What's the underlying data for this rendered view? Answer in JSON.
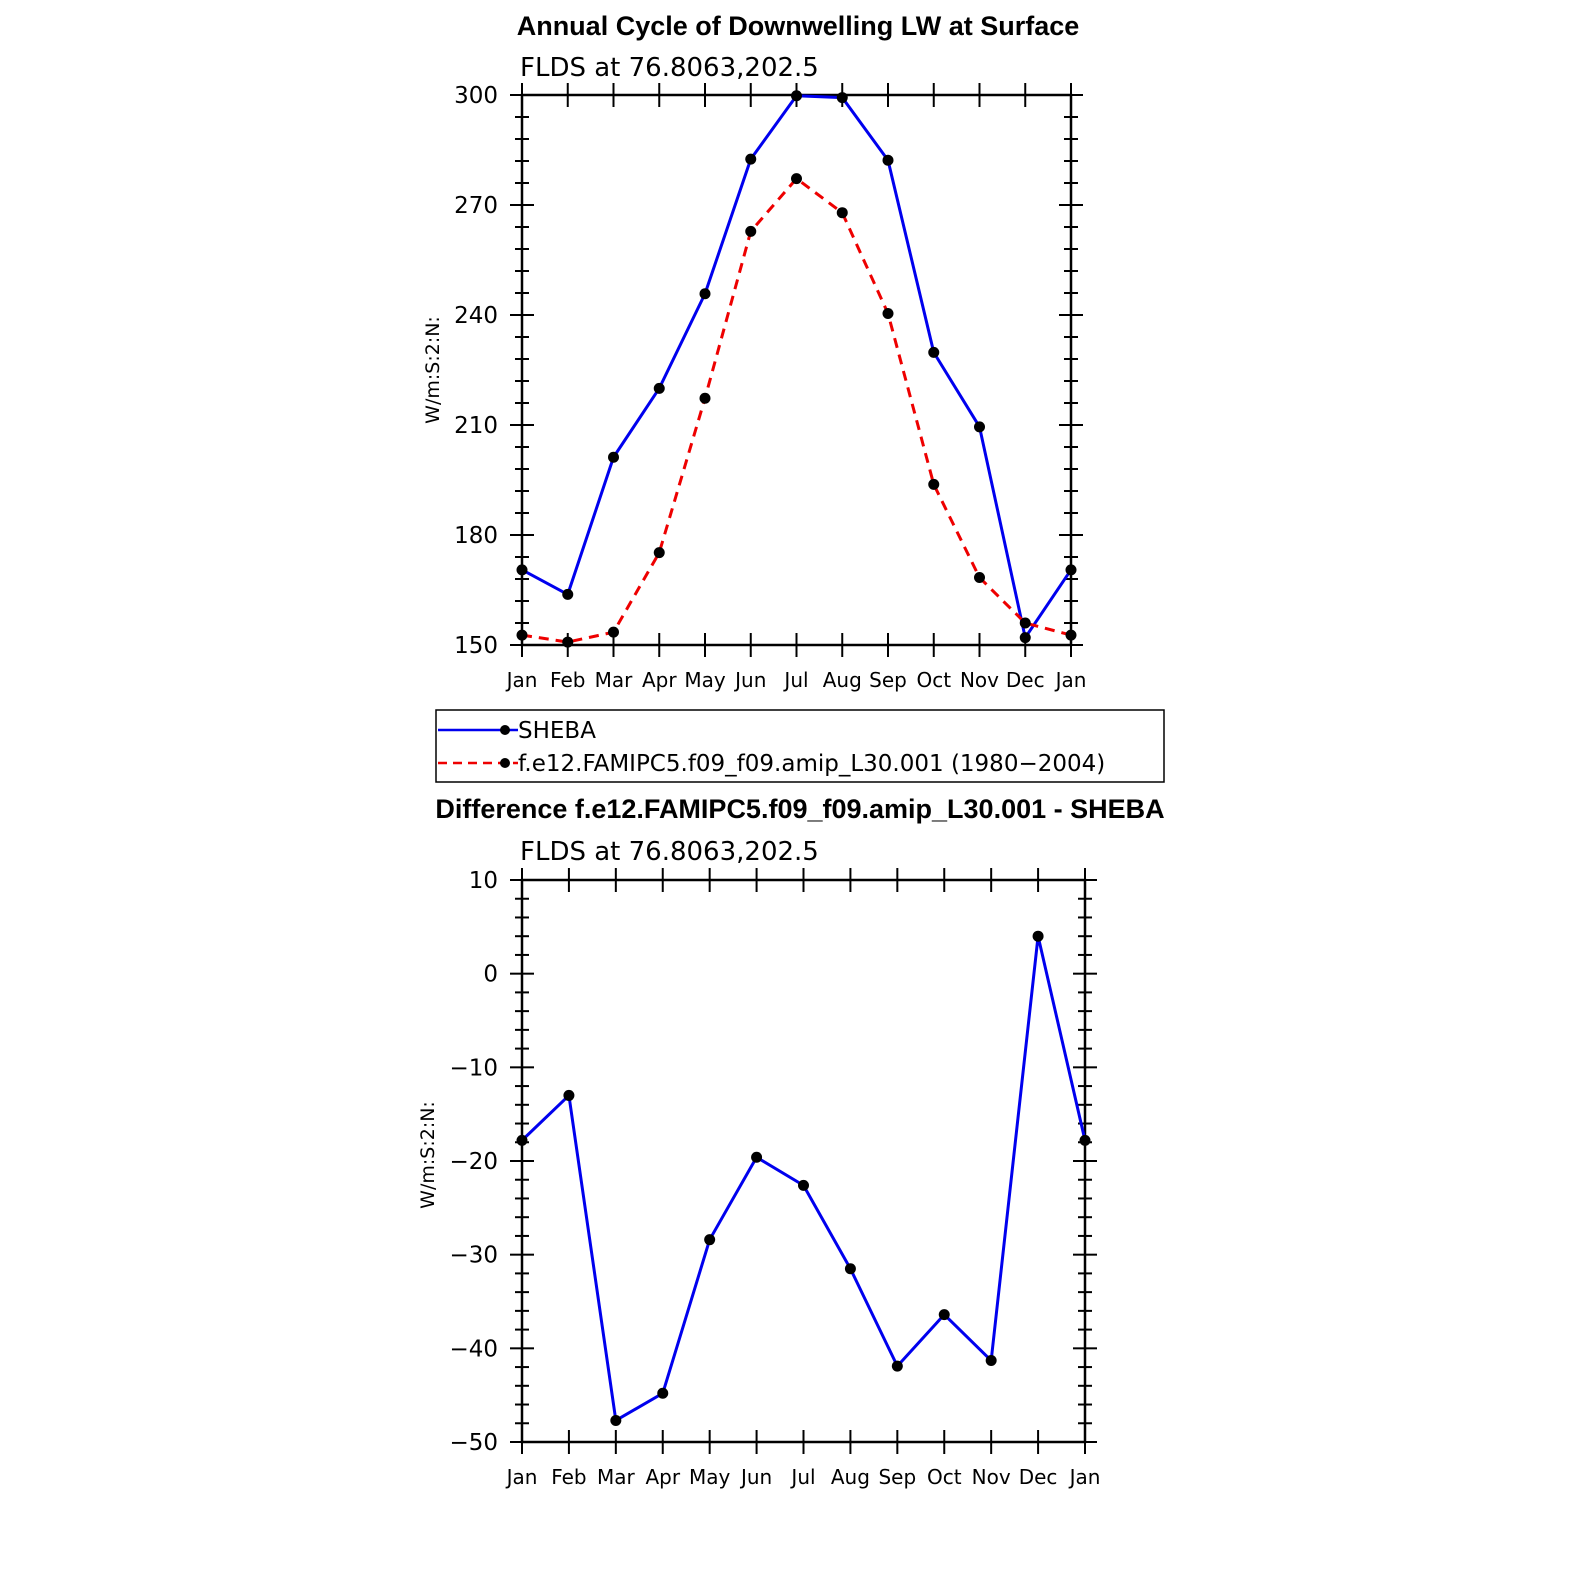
{
  "chart_data": [
    {
      "type": "line",
      "title": "Annual Cycle of Downwelling LW at Surface",
      "subtitle": "FLDS at 76.8063,202.5",
      "ylabel": "W/m:S:2:N:",
      "xlabel": "",
      "categories": [
        "Jan",
        "Feb",
        "Mar",
        "Apr",
        "May",
        "Jun",
        "Jul",
        "Aug",
        "Sep",
        "Oct",
        "Nov",
        "Dec",
        "Jan"
      ],
      "ylim": [
        150,
        300
      ],
      "yticks": [
        150,
        180,
        210,
        240,
        270,
        300
      ],
      "series": [
        {
          "name": "SHEBA",
          "color": "#0000ee",
          "dash": "solid",
          "values": [
            170.5,
            163.8,
            201.2,
            220.0,
            245.8,
            282.5,
            299.8,
            299.3,
            282.2,
            229.8,
            209.5,
            152.0,
            170.5
          ]
        },
        {
          "name": "f.e12.FAMIPC5.f09_f09.amip_L30.001 (1980−2004)",
          "color": "#ee0000",
          "dash": "dashed",
          "values": [
            152.7,
            150.8,
            153.5,
            175.2,
            217.3,
            262.8,
            277.2,
            267.9,
            240.4,
            193.8,
            168.4,
            156.0,
            152.7
          ]
        }
      ],
      "legend": "below"
    },
    {
      "type": "line",
      "title": "Difference f.e12.FAMIPC5.f09_f09.amip_L30.001 - SHEBA",
      "subtitle": "FLDS at 76.8063,202.5",
      "ylabel": "W/m:S:2:N:",
      "xlabel": "",
      "categories": [
        "Jan",
        "Feb",
        "Mar",
        "Apr",
        "May",
        "Jun",
        "Jul",
        "Aug",
        "Sep",
        "Oct",
        "Nov",
        "Dec",
        "Jan"
      ],
      "ylim": [
        -50,
        10
      ],
      "yticks": [
        -50,
        -40,
        -30,
        -20,
        -10,
        0,
        10
      ],
      "ytick_labels": [
        "−50",
        "−40",
        "−30",
        "−20",
        "−10",
        "0",
        "10"
      ],
      "series": [
        {
          "color": "#0000ee",
          "dash": "solid",
          "values": [
            -17.8,
            -13.0,
            -47.7,
            -44.8,
            -28.4,
            -19.6,
            -22.6,
            -31.5,
            -41.9,
            -36.4,
            -41.3,
            4.0,
            -17.8
          ]
        }
      ]
    }
  ]
}
